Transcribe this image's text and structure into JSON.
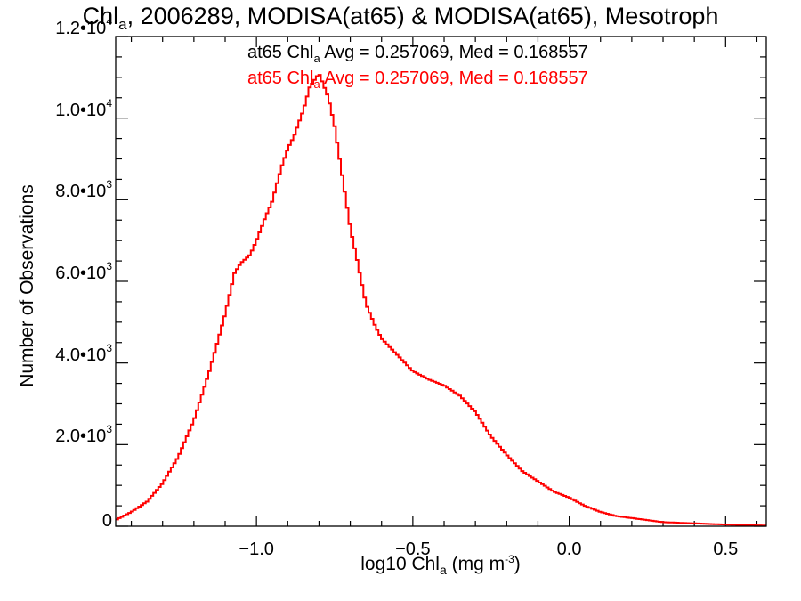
{
  "chart_data": {
    "type": "line",
    "step": true,
    "title": {
      "base": "Chl",
      "sub": "a",
      "rest": ", 2006289, MODISA(at65) & MODISA(at65), Mesotroph"
    },
    "xlabel": {
      "base": "log10 Chl",
      "sub": "a",
      "unit": " (mg m",
      "sup": "-3",
      "close": ")"
    },
    "ylabel": "Number of Observations",
    "xlim": [
      -1.45,
      0.63
    ],
    "ylim": [
      0,
      12000
    ],
    "xticks": [
      {
        "value": -1.0,
        "label": "−1.0"
      },
      {
        "value": -0.5,
        "label": "−0.5"
      },
      {
        "value": 0.0,
        "label": "0.0"
      },
      {
        "value": 0.5,
        "label": "0.5"
      }
    ],
    "yticks": [
      {
        "value": 0,
        "mant": "0",
        "exp": ""
      },
      {
        "value": 2000,
        "mant": "2.0•10",
        "exp": "3"
      },
      {
        "value": 4000,
        "mant": "4.0•10",
        "exp": "3"
      },
      {
        "value": 6000,
        "mant": "6.0•10",
        "exp": "3"
      },
      {
        "value": 8000,
        "mant": "8.0•10",
        "exp": "3"
      },
      {
        "value": 10000,
        "mant": "1.0•10",
        "exp": "4"
      },
      {
        "value": 12000,
        "mant": "1.2•10",
        "exp": "4"
      }
    ],
    "legend": [
      {
        "prefix": "at65 Chl",
        "sub": "a",
        "suffix": " Avg = 0.257069, Med = 0.168557",
        "color": "#000000"
      },
      {
        "prefix": "at65 Chl",
        "sub": "a",
        "suffix": " Avg = 0.257069, Med = 0.168557",
        "color": "#ff0000"
      }
    ],
    "series": [
      {
        "color": "#ff0000",
        "x": [
          -1.45,
          -1.4,
          -1.35,
          -1.3,
          -1.25,
          -1.2,
          -1.15,
          -1.1,
          -1.07,
          -1.05,
          -1.02,
          -1.0,
          -0.97,
          -0.95,
          -0.92,
          -0.9,
          -0.88,
          -0.85,
          -0.83,
          -0.8,
          -0.79,
          -0.77,
          -0.75,
          -0.73,
          -0.7,
          -0.68,
          -0.65,
          -0.62,
          -0.6,
          -0.55,
          -0.5,
          -0.45,
          -0.4,
          -0.35,
          -0.3,
          -0.25,
          -0.2,
          -0.15,
          -0.1,
          -0.05,
          0.0,
          0.05,
          0.1,
          0.15,
          0.2,
          0.25,
          0.3,
          0.4,
          0.5,
          0.63
        ],
        "y": [
          150,
          350,
          600,
          1050,
          1700,
          2600,
          3800,
          5200,
          6200,
          6450,
          6650,
          7000,
          7600,
          7950,
          8800,
          9250,
          9550,
          10200,
          10750,
          11100,
          10900,
          10500,
          9800,
          8800,
          7300,
          6600,
          5450,
          4900,
          4600,
          4200,
          3800,
          3600,
          3450,
          3200,
          2800,
          2200,
          1750,
          1350,
          1100,
          850,
          700,
          500,
          350,
          250,
          200,
          150,
          100,
          70,
          40,
          15
        ]
      }
    ]
  }
}
